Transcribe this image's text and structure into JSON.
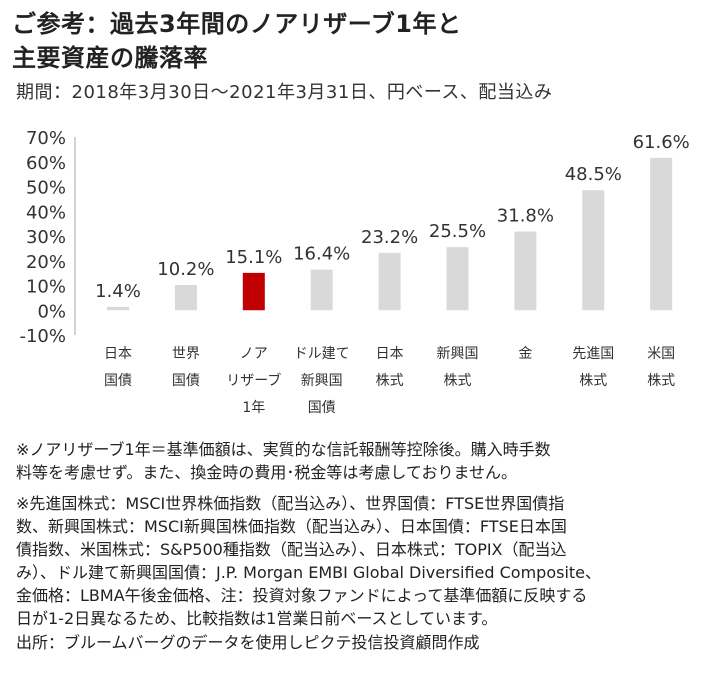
{
  "title": {
    "line1": "ご参考：過去3年間のノアリザーブ1年と",
    "line2": "主要資産の騰落率"
  },
  "subtitle": "期間：2018年3月30日～2021年3月31日、円ベース、配当込み",
  "chart_data": {
    "type": "bar",
    "categories": [
      [
        "日本",
        "国債"
      ],
      [
        "世界",
        "国債"
      ],
      [
        "ノア",
        "リザーブ",
        "1年"
      ],
      [
        "ドル建て",
        "新興国",
        "国債"
      ],
      [
        "日本",
        "株式"
      ],
      [
        "新興国",
        "株式"
      ],
      [
        "金"
      ],
      [
        "先進国",
        "株式"
      ],
      [
        "米国",
        "株式"
      ]
    ],
    "values": [
      1.4,
      10.2,
      15.1,
      16.4,
      23.2,
      25.5,
      31.8,
      48.5,
      61.6
    ],
    "value_labels": [
      "1.4%",
      "10.2%",
      "15.1%",
      "16.4%",
      "23.2%",
      "25.5%",
      "31.8%",
      "48.5%",
      "61.6%"
    ],
    "highlight_index": 2,
    "colors": {
      "default": "#d9d9d9",
      "highlight": "#c00000"
    },
    "ylim": [
      -10,
      70
    ],
    "yticks": [
      70,
      60,
      50,
      40,
      30,
      20,
      10,
      0,
      -10
    ],
    "ytick_labels": [
      "70%",
      "60%",
      "50%",
      "40%",
      "30%",
      "20%",
      "10%",
      "0%",
      "-10%"
    ],
    "grid": false,
    "xlabel": "",
    "ylabel": ""
  },
  "notes": {
    "note1": [
      "※ノアリザーブ1年＝基準価額は、実質的な信託報酬等控除後。購入時手数",
      "料等を考慮せず。また、換金時の費用･税金等は考慮しておりません。"
    ],
    "note2": [
      "※先進国株式：MSCI世界株価指数（配当込み）、世界国債：FTSE世界国債指",
      "数、新興国株式：MSCI新興国株価指数（配当込み）、日本国債：FTSE日本国",
      "債指数、米国株式：S&P500種指数（配当込み）、日本株式：TOPIX（配当込",
      "み）、ドル建て新興国国債：J.P. Morgan EMBI Global Diversified Composite、",
      "金価格：LBMA午後金価格、注：投資対象ファンドによって基準価額に反映する",
      "日が1-2日異なるため、比較指数は1営業日前ベースとしています。"
    ],
    "note3": "出所：ブルームバーグのデータを使用しピクテ投信投資顧問作成"
  }
}
